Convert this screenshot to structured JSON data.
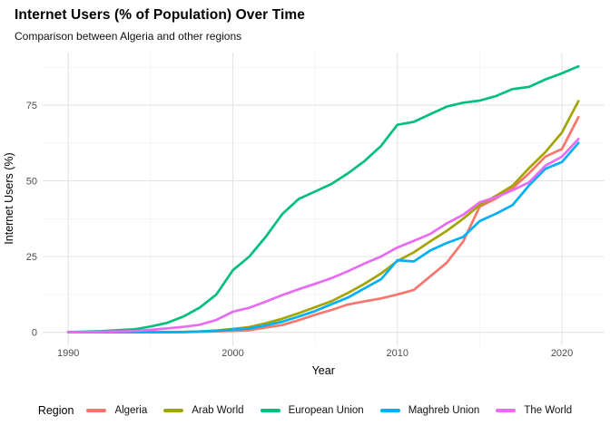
{
  "header": {
    "title": "Internet Users (% of Population) Over Time",
    "subtitle": "Comparison between Algeria and other regions"
  },
  "chart_data": {
    "type": "line",
    "title": "Internet Users (% of Population) Over Time",
    "subtitle": "Comparison between Algeria and other regions",
    "xlabel": "Year",
    "ylabel": "Internet Users (%)",
    "legend_title": "Region",
    "legend_position": "bottom",
    "grid": true,
    "background": "#FFFFFF",
    "gridline_color_major": "#E3E3E3",
    "gridline_color_minor": "#F1F1F1",
    "axis_text_color": "#4D4D4D",
    "axis_title_color": "#000000",
    "x_major_ticks": [
      1990,
      2000,
      2010,
      2020
    ],
    "x_minor_gridlines": [
      1995,
      2005,
      2015
    ],
    "y_major_ticks": [
      0,
      25,
      50,
      75
    ],
    "y_minor_gridlines": [
      12.5,
      37.5,
      62.5,
      87.5
    ],
    "xlim": [
      1990,
      2021
    ],
    "ylim": [
      0,
      88
    ],
    "x": [
      1990,
      1991,
      1992,
      1993,
      1994,
      1995,
      1996,
      1997,
      1998,
      1999,
      2000,
      2001,
      2002,
      2003,
      2004,
      2005,
      2006,
      2007,
      2008,
      2009,
      2010,
      2011,
      2012,
      2013,
      2014,
      2015,
      2016,
      2017,
      2018,
      2019,
      2020,
      2021
    ],
    "series": [
      {
        "name": "Algeria",
        "color": "#F8766D",
        "values": [
          0.0,
          0.0,
          0.0,
          0.0,
          0.01,
          0.02,
          0.05,
          0.1,
          0.2,
          0.3,
          0.5,
          0.7,
          1.6,
          2.4,
          4.0,
          5.8,
          7.4,
          9.2,
          10.2,
          11.2,
          12.5,
          14.0,
          18.5,
          23.0,
          30.0,
          41.5,
          44.2,
          47.6,
          52.5,
          58.0,
          60.5,
          71.0
        ]
      },
      {
        "name": "Arab World",
        "color": "#A3A500",
        "values": [
          0.0,
          0.0,
          0.0,
          0.0,
          0.01,
          0.03,
          0.06,
          0.15,
          0.3,
          0.6,
          1.1,
          1.7,
          3.0,
          4.5,
          6.3,
          8.3,
          10.3,
          13.0,
          16.0,
          19.4,
          23.5,
          26.4,
          30.0,
          33.5,
          37.5,
          42.0,
          45.1,
          48.4,
          54.2,
          59.5,
          66.0,
          76.3
        ]
      },
      {
        "name": "European Union",
        "color": "#00BF7D",
        "values": [
          0.1,
          0.2,
          0.4,
          0.7,
          1.0,
          1.9,
          3.1,
          5.2,
          8.2,
          12.5,
          20.5,
          25.0,
          31.5,
          39.0,
          44.0,
          46.5,
          49.0,
          52.5,
          56.5,
          61.5,
          68.5,
          69.5,
          72.0,
          74.5,
          75.8,
          76.5,
          78.0,
          80.3,
          81.0,
          83.5,
          85.5,
          87.8
        ]
      },
      {
        "name": "Maghreb Union",
        "color": "#00B0F6",
        "values": [
          0.0,
          0.0,
          0.0,
          0.0,
          0.01,
          0.03,
          0.05,
          0.1,
          0.25,
          0.5,
          0.9,
          1.3,
          2.3,
          3.5,
          5.2,
          7.0,
          9.3,
          11.5,
          14.5,
          17.5,
          23.8,
          23.4,
          27.0,
          29.5,
          31.5,
          36.7,
          39.2,
          42.0,
          48.5,
          54.0,
          56.2,
          62.5
        ]
      },
      {
        "name": "The World",
        "color": "#E76BF3",
        "values": [
          0.05,
          0.1,
          0.2,
          0.3,
          0.45,
          0.8,
          1.3,
          1.8,
          2.5,
          4.1,
          6.8,
          8.1,
          10.1,
          12.3,
          14.2,
          16.0,
          17.9,
          20.2,
          22.7,
          25.0,
          28.0,
          30.2,
          32.5,
          36.0,
          38.8,
          42.9,
          44.6,
          46.9,
          49.5,
          55.0,
          58.0,
          63.8
        ]
      }
    ]
  }
}
